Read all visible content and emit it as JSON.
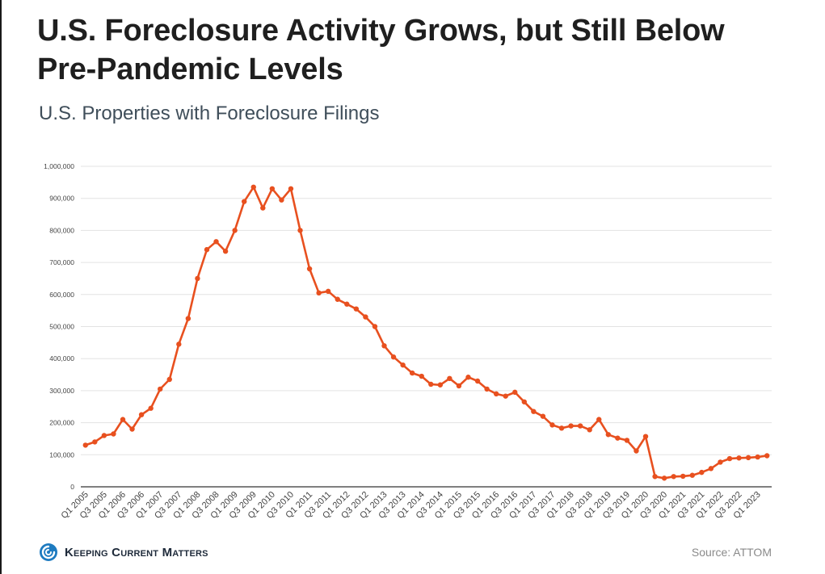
{
  "title": "U.S. Foreclosure Activity Grows, but Still Below Pre-Pandemic Levels",
  "subtitle": "U.S. Properties with Foreclosure Filings",
  "brand": {
    "name": "Keeping Current Matters",
    "icon": "kcm-swirl-logo-icon",
    "color": "#1e7bc0"
  },
  "source": "Source: ATTOM",
  "colors": {
    "line": "#e8501f",
    "grid": "#e3e3e3",
    "axis": "#333333",
    "tick": "#444444"
  },
  "chart_data": {
    "type": "line",
    "title": "U.S. Foreclosure Activity Grows, but Still Below Pre-Pandemic Levels",
    "subtitle": "U.S. Properties with Foreclosure Filings",
    "xlabel": "",
    "ylabel": "",
    "ylim": [
      0,
      1000000
    ],
    "yticks": [
      0,
      100000,
      200000,
      300000,
      400000,
      500000,
      600000,
      700000,
      800000,
      900000,
      1000000
    ],
    "ytick_labels": [
      "0",
      "100,000",
      "200,000",
      "300,000",
      "400,000",
      "500,000",
      "600,000",
      "700,000",
      "800,000",
      "900,000",
      "1,000,000"
    ],
    "grid": true,
    "legend": "none",
    "categories": [
      "Q1 2005",
      "Q2 2005",
      "Q3 2005",
      "Q4 2005",
      "Q1 2006",
      "Q2 2006",
      "Q3 2006",
      "Q4 2006",
      "Q1 2007",
      "Q2 2007",
      "Q3 2007",
      "Q4 2007",
      "Q1 2008",
      "Q2 2008",
      "Q3 2008",
      "Q4 2008",
      "Q1 2009",
      "Q2 2009",
      "Q3 2009",
      "Q4 2009",
      "Q1 2010",
      "Q2 2010",
      "Q3 2010",
      "Q4 2010",
      "Q1 2011",
      "Q2 2011",
      "Q3 2011",
      "Q4 2011",
      "Q1 2012",
      "Q2 2012",
      "Q3 2012",
      "Q4 2012",
      "Q1 2013",
      "Q2 2013",
      "Q3 2013",
      "Q4 2013",
      "Q1 2014",
      "Q2 2014",
      "Q3 2014",
      "Q4 2014",
      "Q1 2015",
      "Q2 2015",
      "Q3 2015",
      "Q4 2015",
      "Q1 2016",
      "Q2 2016",
      "Q3 2016",
      "Q4 2016",
      "Q1 2017",
      "Q2 2017",
      "Q3 2017",
      "Q4 2017",
      "Q1 2018",
      "Q2 2018",
      "Q3 2018",
      "Q4 2018",
      "Q1 2019",
      "Q2 2019",
      "Q3 2019",
      "Q4 2019",
      "Q1 2020",
      "Q2 2020",
      "Q3 2020",
      "Q4 2020",
      "Q1 2021",
      "Q2 2021",
      "Q3 2021",
      "Q4 2021",
      "Q1 2022",
      "Q2 2022",
      "Q3 2022",
      "Q4 2022",
      "Q1 2023",
      "Q2 2023"
    ],
    "tick_labels": [
      "Q1 2005",
      "Q3 2005",
      "Q1 2006",
      "Q3 2006",
      "Q1 2007",
      "Q3 2007",
      "Q1 2008",
      "Q3 2008",
      "Q1 2009",
      "Q3 2009",
      "Q1 2010",
      "Q3 2010",
      "Q1 2011",
      "Q3 2011",
      "Q1 2012",
      "Q3 2012",
      "Q1 2013",
      "Q3 2013",
      "Q1 2014",
      "Q3 2014",
      "Q1 2015",
      "Q3 2015",
      "Q1 2016",
      "Q3 2016",
      "Q1 2017",
      "Q3 2017",
      "Q1 2018",
      "Q3 2018",
      "Q1 2019",
      "Q3 2019",
      "Q1 2020",
      "Q3 2020",
      "Q1 2021",
      "Q3 2021",
      "Q1 2022",
      "Q3 2022",
      "Q1 2023"
    ],
    "series": [
      {
        "values": [
          130000,
          140000,
          160000,
          165000,
          210000,
          180000,
          225000,
          245000,
          305000,
          335000,
          445000,
          525000,
          650000,
          740000,
          765000,
          735000,
          800000,
          890000,
          935000,
          870000,
          930000,
          895000,
          930000,
          800000,
          680000,
          605000,
          610000,
          585000,
          570000,
          555000,
          530000,
          500000,
          440000,
          405000,
          380000,
          355000,
          345000,
          320000,
          318000,
          338000,
          315000,
          342000,
          330000,
          305000,
          290000,
          283000,
          295000,
          265000,
          235000,
          220000,
          193000,
          183000,
          190000,
          190000,
          178000,
          210000,
          163000,
          152000,
          145000,
          112000,
          157000,
          32000,
          27000,
          32000,
          33000,
          36000,
          45000,
          57000,
          77000,
          88000,
          90000,
          91000,
          93000,
          97000
        ]
      }
    ]
  }
}
